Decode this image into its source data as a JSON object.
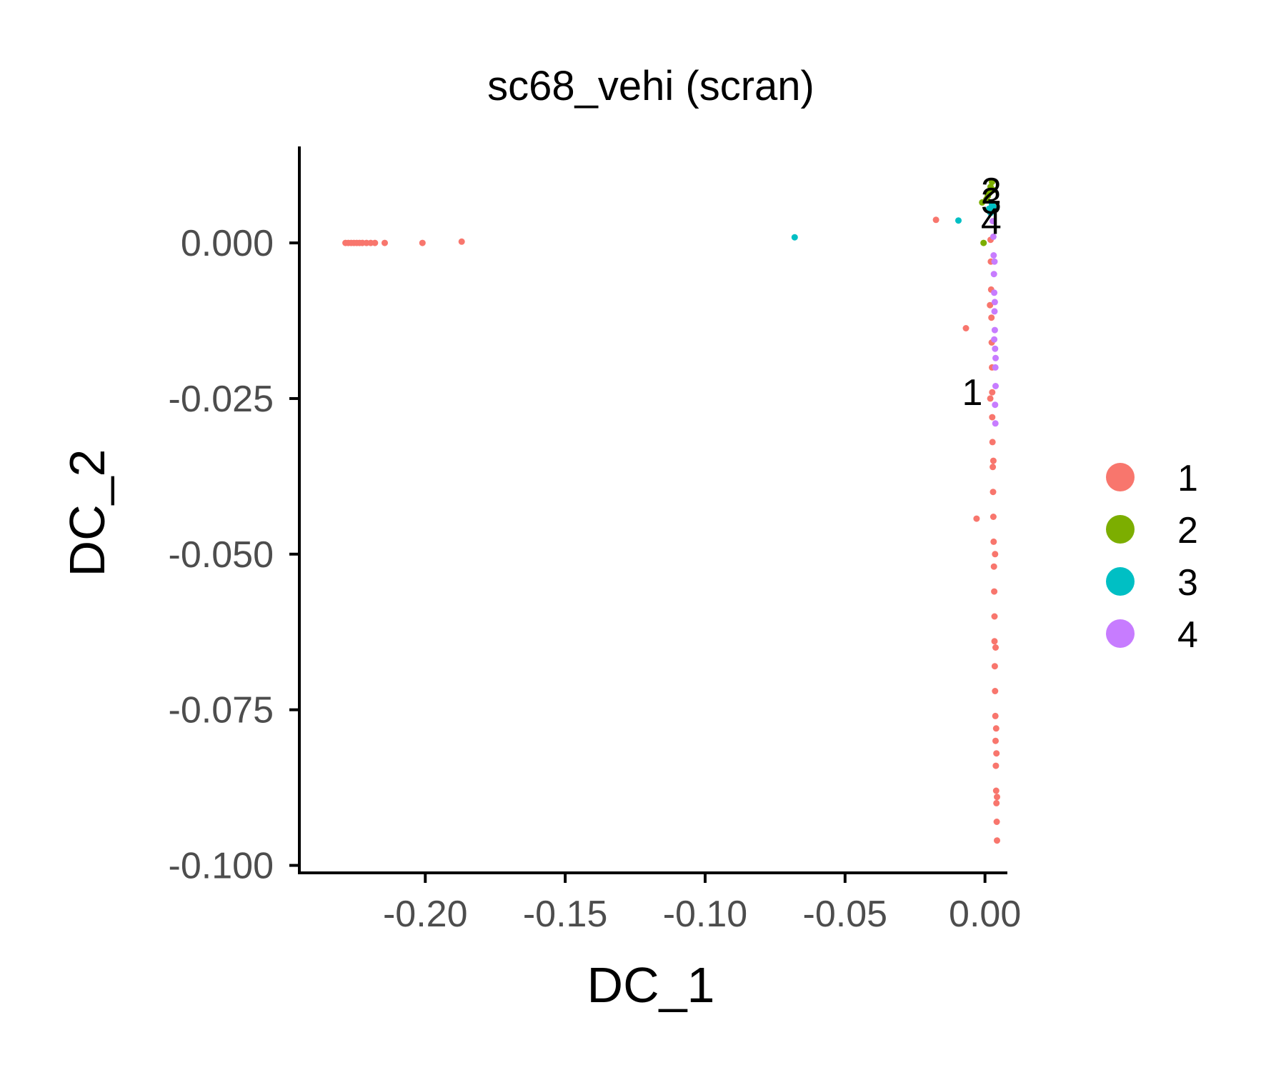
{
  "chart_data": {
    "type": "scatter",
    "title": "sc68_vehi (scran)",
    "xlabel": "DC_1",
    "ylabel": "DC_2",
    "xlim": [
      -0.245,
      0.008
    ],
    "ylim": [
      -0.1012,
      0.0155
    ],
    "x_ticks": [
      {
        "value": -0.2,
        "label": "-0.20"
      },
      {
        "value": -0.15,
        "label": "-0.15"
      },
      {
        "value": -0.1,
        "label": "-0.10"
      },
      {
        "value": -0.05,
        "label": "-0.05"
      },
      {
        "value": 0.0,
        "label": "0.00"
      }
    ],
    "y_ticks": [
      {
        "value": 0.0,
        "label": "0.000"
      },
      {
        "value": -0.025,
        "label": "-0.025"
      },
      {
        "value": -0.05,
        "label": "-0.050"
      },
      {
        "value": -0.075,
        "label": "-0.075"
      },
      {
        "value": -0.1,
        "label": "-0.100"
      }
    ],
    "grid": false,
    "legend_position": "right",
    "series": [
      {
        "name": "1",
        "color": "#F8766D",
        "points": [
          [
            -0.2285,
            0.0
          ],
          [
            -0.2275,
            0.0
          ],
          [
            -0.2265,
            0.0
          ],
          [
            -0.2255,
            0.0
          ],
          [
            -0.2245,
            0.0
          ],
          [
            -0.2235,
            0.0
          ],
          [
            -0.2225,
            0.0
          ],
          [
            -0.221,
            0.0
          ],
          [
            -0.2195,
            0.0
          ],
          [
            -0.218,
            0.0
          ],
          [
            -0.2145,
            0.0
          ],
          [
            -0.201,
            0.0
          ],
          [
            -0.187,
            0.0002
          ],
          [
            -0.0175,
            0.0037
          ],
          [
            -0.0068,
            -0.0137
          ],
          [
            -0.003,
            -0.0443
          ],
          [
            0.002,
            0.0005
          ],
          [
            0.0021,
            -0.003
          ],
          [
            0.0022,
            -0.0075
          ],
          [
            0.0023,
            -0.012
          ],
          [
            0.0024,
            -0.016
          ],
          [
            0.0025,
            -0.02
          ],
          [
            0.0026,
            -0.024
          ],
          [
            0.0026,
            -0.028
          ],
          [
            0.0027,
            -0.032
          ],
          [
            0.0028,
            -0.036
          ],
          [
            0.0029,
            -0.04
          ],
          [
            0.003,
            -0.044
          ],
          [
            0.0031,
            -0.048
          ],
          [
            0.0032,
            -0.052
          ],
          [
            0.0033,
            -0.056
          ],
          [
            0.0034,
            -0.06
          ],
          [
            0.0034,
            -0.064
          ],
          [
            0.0035,
            -0.068
          ],
          [
            0.0036,
            -0.072
          ],
          [
            0.0037,
            -0.076
          ],
          [
            0.0038,
            -0.08
          ],
          [
            0.0039,
            -0.084
          ],
          [
            0.004,
            -0.088
          ],
          [
            0.0041,
            -0.09
          ],
          [
            0.0042,
            -0.093
          ],
          [
            0.0043,
            -0.096
          ],
          [
            0.0018,
            -0.01
          ],
          [
            0.0019,
            -0.025
          ],
          [
            0.003,
            -0.035
          ],
          [
            0.0036,
            -0.05
          ],
          [
            0.0038,
            -0.065
          ],
          [
            0.004,
            -0.078
          ],
          [
            0.0041,
            -0.082
          ],
          [
            0.0043,
            -0.089
          ]
        ]
      },
      {
        "name": "2",
        "color": "#7CAE00",
        "points": [
          [
            -0.0005,
            0.0
          ],
          [
            -0.001,
            0.0065
          ],
          [
            0.0005,
            0.007
          ],
          [
            0.0015,
            0.008
          ],
          [
            0.002,
            0.009
          ],
          [
            0.0025,
            0.0098
          ],
          [
            0.003,
            0.0085
          ],
          [
            0.0018,
            0.0055
          ],
          [
            0.001,
            0.0075
          ],
          [
            0.0028,
            0.006
          ]
        ]
      },
      {
        "name": "3",
        "color": "#00BFC4",
        "points": [
          [
            -0.068,
            0.0009
          ],
          [
            -0.0095,
            0.0036
          ],
          [
            0.0015,
            0.0055
          ],
          [
            0.0025,
            0.0062
          ],
          [
            0.002,
            0.0048
          ],
          [
            0.003,
            0.0058
          ]
        ]
      },
      {
        "name": "4",
        "color": "#C77CFF",
        "points": [
          [
            0.0028,
            0.0035
          ],
          [
            0.003,
            0.001
          ],
          [
            0.0031,
            -0.002
          ],
          [
            0.0032,
            -0.005
          ],
          [
            0.0033,
            -0.008
          ],
          [
            0.0034,
            -0.011
          ],
          [
            0.0035,
            -0.014
          ],
          [
            0.0036,
            -0.017
          ],
          [
            0.0037,
            -0.02
          ],
          [
            0.0038,
            -0.023
          ],
          [
            0.0036,
            -0.026
          ],
          [
            0.0037,
            -0.029
          ],
          [
            0.0035,
            -0.0095
          ],
          [
            0.0033,
            -0.0155
          ],
          [
            0.0038,
            -0.0185
          ],
          [
            0.0034,
            -0.003
          ]
        ]
      }
    ],
    "cluster_labels": [
      {
        "text": "1",
        "x": -0.0045,
        "y": -0.024
      },
      {
        "text": "2",
        "x": 0.0022,
        "y": 0.0084
      },
      {
        "text": "3",
        "x": 0.0022,
        "y": 0.0068
      },
      {
        "text": "4",
        "x": 0.0022,
        "y": 0.0035
      }
    ]
  }
}
